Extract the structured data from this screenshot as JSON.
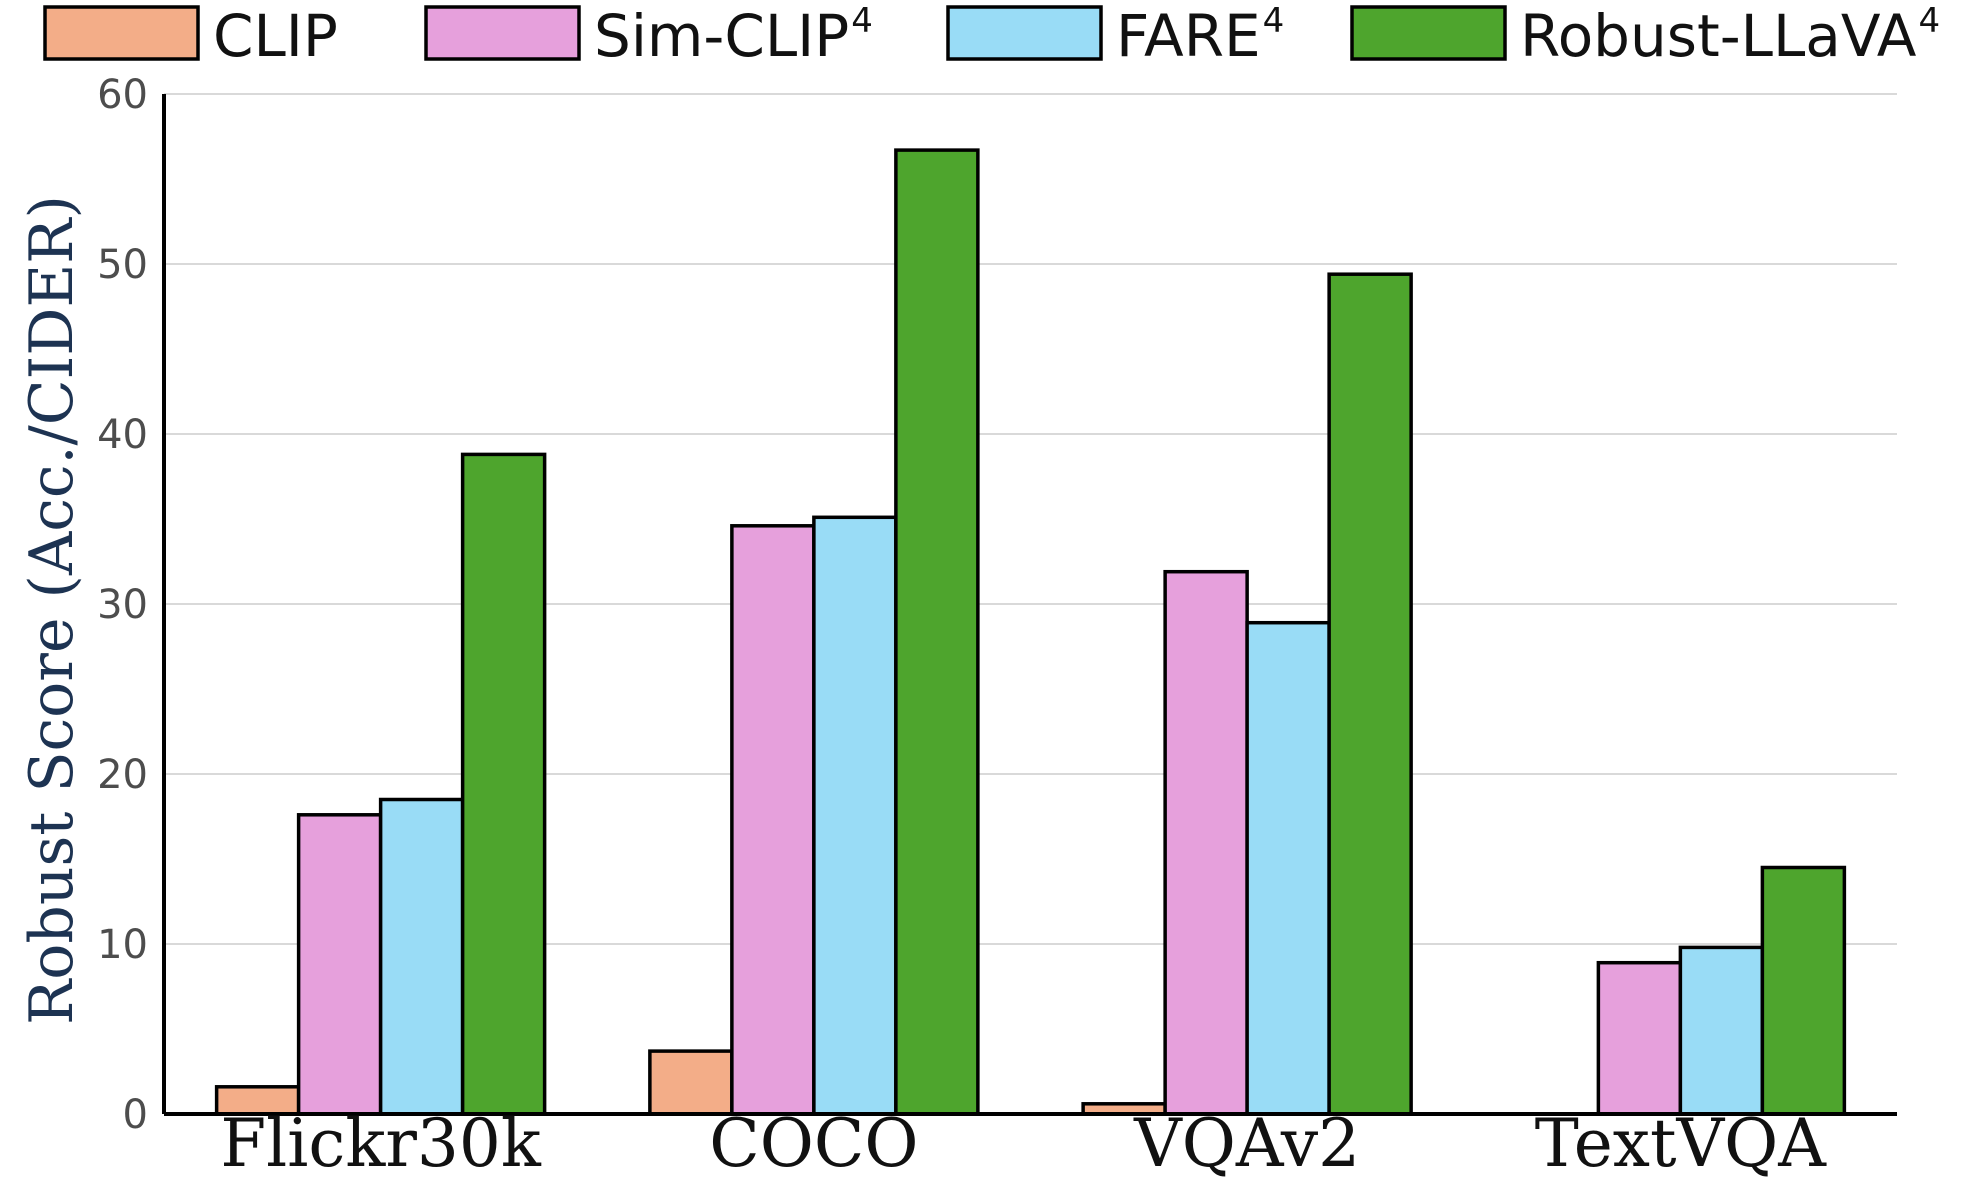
{
  "chart_data": {
    "type": "bar",
    "ylabel": "Robust Score (Acc./CIDER)",
    "ylim": [
      0,
      60
    ],
    "yticks": [
      0,
      10,
      20,
      30,
      40,
      50,
      60
    ],
    "grid": true,
    "legend_position": "top",
    "categories": [
      "Flickr30k",
      "COCO",
      "VQAv2",
      "TextVQA"
    ],
    "series": [
      {
        "name": "CLIP",
        "sup": "",
        "color": "#f3ad88",
        "values": [
          1.6,
          3.7,
          0.6,
          0
        ]
      },
      {
        "name": "Sim-CLIP",
        "sup": "4",
        "color": "#e6a0dc",
        "values": [
          17.6,
          34.6,
          31.9,
          8.9
        ]
      },
      {
        "name": "FARE",
        "sup": "4",
        "color": "#99dcf6",
        "values": [
          18.5,
          35.1,
          28.9,
          9.8
        ]
      },
      {
        "name": "Robust-LLaVA",
        "sup": "4",
        "color": "#4ea52d",
        "values": [
          38.8,
          56.7,
          49.4,
          14.5
        ]
      }
    ]
  }
}
